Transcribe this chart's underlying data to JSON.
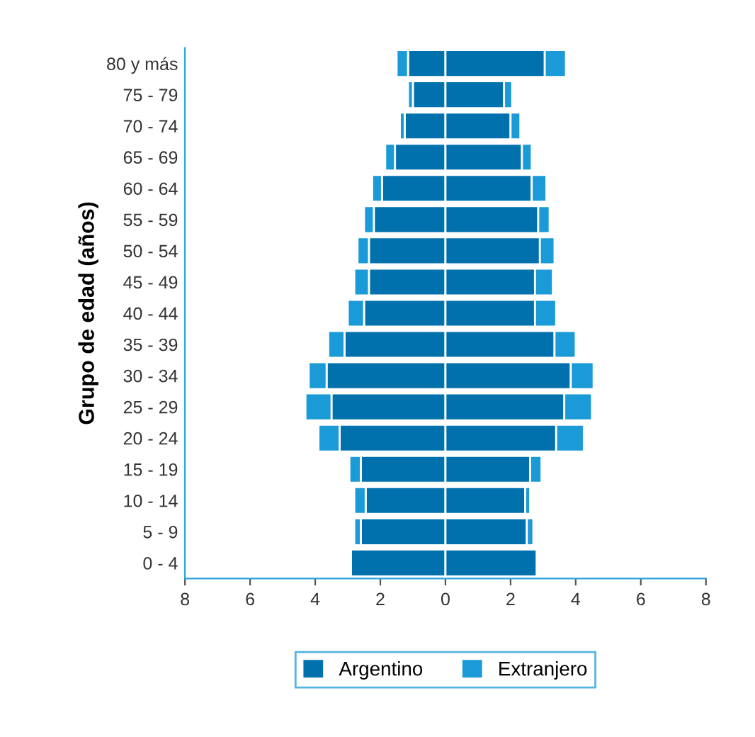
{
  "chart_data": {
    "type": "bar",
    "orientation": "horizontal",
    "stacked": true,
    "ylabel": "Grupo de edad (años)",
    "categories": [
      "80 y más",
      "75 - 79",
      "70 - 74",
      "65 - 69",
      "60 - 64",
      "55 - 59",
      "50 - 54",
      "45 - 49",
      "40 - 44",
      "35 - 39",
      "30 - 34",
      "25 - 29",
      "20 - 24",
      "15 - 19",
      "10 - 14",
      "5 - 9",
      "0 - 4"
    ],
    "series": [
      {
        "name": "Argentino",
        "color": "#0071ad",
        "values": [
          -1.15,
          -1.0,
          -1.25,
          -1.55,
          -1.95,
          -2.2,
          -2.35,
          -2.35,
          -2.5,
          -3.1,
          -3.65,
          -3.5,
          -3.25,
          -2.6,
          -2.45,
          -2.6,
          -2.9
        ]
      },
      {
        "name": "Extranjero",
        "color": "#1a9ad6",
        "values": [
          -0.35,
          -0.15,
          -0.15,
          -0.3,
          -0.3,
          -0.3,
          -0.35,
          -0.45,
          -0.5,
          -0.5,
          -0.55,
          -0.8,
          -0.65,
          -0.35,
          -0.35,
          -0.2,
          0
        ]
      },
      {
        "color": "#0071ad",
        "values": [
          3.05,
          1.8,
          2.0,
          2.35,
          2.65,
          2.85,
          2.9,
          2.75,
          2.75,
          3.35,
          3.85,
          3.65,
          3.4,
          2.6,
          2.45,
          2.5,
          2.8
        ]
      },
      {
        "color": "#1a9ad6",
        "values": [
          0.65,
          0.25,
          0.3,
          0.3,
          0.45,
          0.35,
          0.45,
          0.55,
          0.65,
          0.65,
          0.7,
          0.85,
          0.85,
          0.35,
          0.15,
          0.2,
          0
        ]
      }
    ],
    "xlim": [
      -8,
      8
    ],
    "xticks": [
      {
        "value": -8,
        "label": "8"
      },
      {
        "value": -6,
        "label": "6"
      },
      {
        "value": -4,
        "label": "4"
      },
      {
        "value": -2,
        "label": "2"
      },
      0,
      2,
      4,
      6,
      8
    ],
    "grid": false,
    "legend": "bottom"
  }
}
